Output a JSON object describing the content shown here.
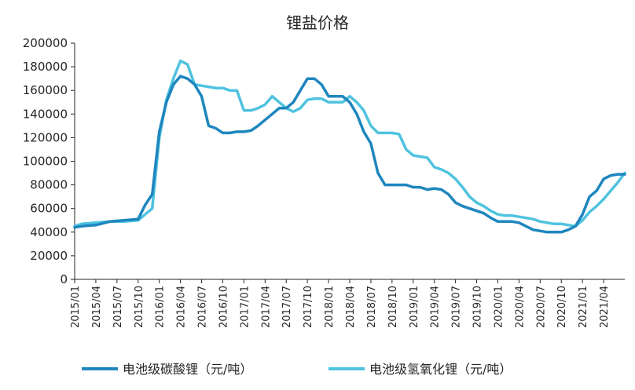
{
  "chart_data": {
    "type": "line",
    "title": "锂盐价格",
    "xlabel": "",
    "ylabel": "",
    "ylim": [
      0,
      200000
    ],
    "yticks": [
      "200000",
      "180000",
      "160000",
      "140000",
      "120000",
      "100000",
      "80000",
      "60000",
      "40000",
      "20000",
      "0"
    ],
    "xtick_labels": [
      "2015/01",
      "2015/04",
      "2015/07",
      "2015/10",
      "2016/01",
      "2016/04",
      "2016/07",
      "2016/10",
      "2017/01",
      "2017/04",
      "2017/07",
      "2017/10",
      "2018/01",
      "2018/04",
      "2018/07",
      "2018/10",
      "2019/01",
      "2019/04",
      "2019/07",
      "2019/10",
      "2020/01",
      "2020/04",
      "2020/07",
      "2020/10",
      "2021/01",
      "2021/04"
    ],
    "grid": false,
    "legend_position": "bottom",
    "series": [
      {
        "name": "电池级碳酸锂（元/吨）",
        "color": "#1E86BE",
        "x": [
          "2015/01",
          "2015/02",
          "2015/04",
          "2015/06",
          "2015/08",
          "2015/10",
          "2015/11",
          "2015/12",
          "2016/01",
          "2016/02",
          "2016/03",
          "2016/04",
          "2016/05",
          "2016/06",
          "2016/07",
          "2016/08",
          "2016/09",
          "2016/10",
          "2016/11",
          "2016/12",
          "2017/01",
          "2017/02",
          "2017/03",
          "2017/04",
          "2017/05",
          "2017/06",
          "2017/07",
          "2017/08",
          "2017/09",
          "2017/10",
          "2017/11",
          "2017/12",
          "2018/01",
          "2018/02",
          "2018/03",
          "2018/04",
          "2018/05",
          "2018/06",
          "2018/07",
          "2018/08",
          "2018/09",
          "2018/10",
          "2018/11",
          "2018/12",
          "2019/01",
          "2019/02",
          "2019/03",
          "2019/04",
          "2019/05",
          "2019/06",
          "2019/07",
          "2019/08",
          "2019/09",
          "2019/10",
          "2019/11",
          "2019/12",
          "2020/01",
          "2020/02",
          "2020/03",
          "2020/04",
          "2020/05",
          "2020/06",
          "2020/07",
          "2020/08",
          "2020/09",
          "2020/10",
          "2020/11",
          "2020/12",
          "2021/01",
          "2021/02",
          "2021/03",
          "2021/04",
          "2021/05",
          "2021/06",
          "2021/07"
        ],
        "values": [
          44000,
          45000,
          46000,
          49000,
          50000,
          51000,
          63000,
          72000,
          125000,
          150000,
          165000,
          172000,
          170000,
          165000,
          155000,
          130000,
          128000,
          124000,
          124000,
          125000,
          125000,
          126000,
          130000,
          135000,
          140000,
          145000,
          145000,
          150000,
          160000,
          170000,
          170000,
          165000,
          155000,
          155000,
          155000,
          150000,
          140000,
          125000,
          115000,
          90000,
          80000,
          80000,
          80000,
          80000,
          78000,
          78000,
          76000,
          77000,
          76000,
          72000,
          65000,
          62000,
          60000,
          58000,
          56000,
          52000,
          49000,
          49000,
          49000,
          48000,
          45000,
          42000,
          41000,
          40000,
          40000,
          40000,
          42000,
          45000,
          55000,
          70000,
          75000,
          85000,
          88000,
          89000,
          89000
        ]
      },
      {
        "name": "电池级氢氧化锂（元/吨）",
        "color": "#4FC3DF",
        "x": [
          "2015/01",
          "2015/02",
          "2015/04",
          "2015/06",
          "2015/08",
          "2015/10",
          "2015/11",
          "2015/12",
          "2016/01",
          "2016/02",
          "2016/03",
          "2016/04",
          "2016/05",
          "2016/06",
          "2016/07",
          "2016/08",
          "2016/09",
          "2016/10",
          "2016/11",
          "2016/12",
          "2017/01",
          "2017/02",
          "2017/03",
          "2017/04",
          "2017/05",
          "2017/06",
          "2017/07",
          "2017/08",
          "2017/09",
          "2017/10",
          "2017/11",
          "2017/12",
          "2018/01",
          "2018/02",
          "2018/03",
          "2018/04",
          "2018/05",
          "2018/06",
          "2018/07",
          "2018/08",
          "2018/09",
          "2018/10",
          "2018/11",
          "2018/12",
          "2019/01",
          "2019/02",
          "2019/03",
          "2019/04",
          "2019/05",
          "2019/06",
          "2019/07",
          "2019/08",
          "2019/09",
          "2019/10",
          "2019/11",
          "2019/12",
          "2020/01",
          "2020/02",
          "2020/03",
          "2020/04",
          "2020/05",
          "2020/06",
          "2020/07",
          "2020/08",
          "2020/09",
          "2020/10",
          "2020/11",
          "2020/12",
          "2021/01",
          "2021/02",
          "2021/03",
          "2021/04",
          "2021/05",
          "2021/06",
          "2021/07"
        ],
        "values": [
          45000,
          47000,
          48000,
          49000,
          49000,
          50000,
          55000,
          60000,
          120000,
          152000,
          170000,
          185000,
          182000,
          165000,
          164000,
          163000,
          162000,
          162000,
          160000,
          160000,
          143000,
          143000,
          145000,
          148000,
          155000,
          150000,
          145000,
          142000,
          145000,
          152000,
          153000,
          153000,
          150000,
          150000,
          150000,
          155000,
          150000,
          143000,
          130000,
          124000,
          124000,
          124000,
          123000,
          110000,
          105000,
          104000,
          103000,
          95000,
          93000,
          90000,
          85000,
          78000,
          70000,
          65000,
          62000,
          58000,
          55000,
          54000,
          54000,
          53000,
          52000,
          51000,
          49000,
          48000,
          47000,
          47000,
          46000,
          45000,
          50000,
          57000,
          62000,
          68000,
          75000,
          82000,
          90000
        ]
      }
    ]
  }
}
